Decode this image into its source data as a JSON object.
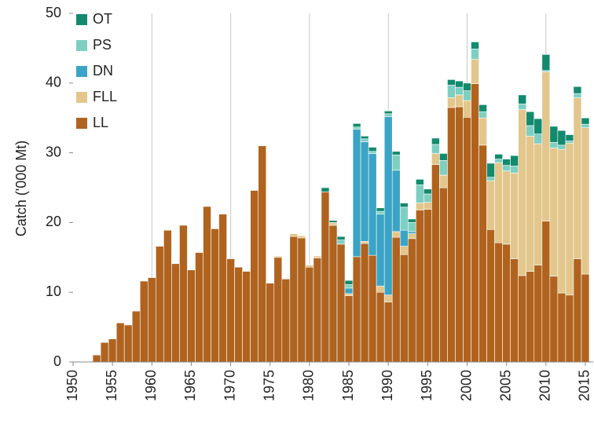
{
  "chart_data": {
    "type": "stacked-bar",
    "y_label": "Catch ('000 Mt)",
    "x": [
      1953,
      1954,
      1955,
      1956,
      1957,
      1958,
      1959,
      1960,
      1961,
      1962,
      1963,
      1964,
      1965,
      1966,
      1967,
      1968,
      1969,
      1970,
      1971,
      1972,
      1973,
      1974,
      1975,
      1976,
      1977,
      1978,
      1979,
      1980,
      1981,
      1982,
      1983,
      1984,
      1985,
      1986,
      1987,
      1988,
      1989,
      1990,
      1991,
      1992,
      1993,
      1994,
      1995,
      1996,
      1997,
      1998,
      1999,
      2000,
      2001,
      2002,
      2003,
      2004,
      2005,
      2006,
      2007,
      2008,
      2009,
      2010,
      2011,
      2012,
      2013,
      2014,
      2015
    ],
    "series": [
      {
        "name": "LL",
        "color": "#b0631f",
        "values": [
          1.0,
          2.8,
          3.3,
          5.6,
          5.3,
          7.3,
          11.6,
          12.1,
          16.6,
          18.9,
          14.1,
          19.6,
          13.2,
          15.7,
          22.3,
          19.1,
          21.2,
          14.8,
          13.6,
          13.0,
          24.6,
          31.0,
          11.3,
          15.0,
          11.9,
          18.0,
          17.8,
          13.6,
          14.9,
          24.4,
          19.6,
          16.9,
          9.5,
          15.1,
          17.0,
          15.3,
          10.0,
          8.6,
          17.9,
          15.4,
          17.7,
          21.8,
          21.9,
          28.3,
          25.0,
          36.5,
          36.6,
          35.1,
          39.9,
          31.1,
          19.0,
          17.1,
          16.9,
          14.8,
          12.4,
          13.0,
          13.9,
          20.2,
          12.3,
          9.9,
          9.6,
          14.8,
          12.6
        ]
      },
      {
        "name": "FLL",
        "color": "#e2c68c",
        "values": [
          0,
          0,
          0,
          0,
          0,
          0,
          0,
          0,
          0,
          0,
          0,
          0,
          0,
          0,
          0,
          0,
          0,
          0,
          0,
          0,
          0,
          0,
          0,
          0.2,
          0,
          0.4,
          0.3,
          0.3,
          0.3,
          0,
          0.4,
          0,
          0.3,
          0,
          0.3,
          0,
          0.9,
          1.0,
          0.8,
          1.2,
          0.7,
          1.0,
          1.0,
          1.6,
          1.8,
          1.4,
          1.7,
          2.4,
          3.5,
          3.9,
          7.0,
          11.5,
          10.5,
          12.3,
          23.8,
          19.4,
          17.4,
          21.4,
          18.4,
          20.6,
          21.8,
          23.1,
          21.0
        ]
      },
      {
        "name": "DN",
        "color": "#3aa4c6",
        "values": [
          0,
          0,
          0,
          0,
          0,
          0,
          0,
          0,
          0,
          0,
          0,
          0,
          0,
          0,
          0,
          0,
          0,
          0,
          0,
          0,
          0,
          0,
          0,
          0,
          0,
          0,
          0,
          0,
          0,
          0,
          0,
          0,
          0.8,
          18.3,
          14.3,
          14.6,
          10.3,
          25.6,
          8.8,
          2.3,
          0.3,
          0,
          0,
          0,
          0,
          0,
          0,
          0,
          0,
          0,
          0,
          0,
          0,
          0,
          0,
          0,
          0,
          0,
          0,
          0,
          0,
          0,
          0
        ]
      },
      {
        "name": "PS",
        "color": "#7ecfc2",
        "values": [
          0,
          0,
          0,
          0,
          0,
          0,
          0,
          0,
          0,
          0,
          0,
          0,
          0,
          0,
          0,
          0,
          0,
          0,
          0,
          0,
          0,
          0,
          0,
          0,
          0,
          0,
          0,
          0,
          0,
          0,
          0,
          0.6,
          0.5,
          0.3,
          0.4,
          0.3,
          0.4,
          0.4,
          2.2,
          3.3,
          1.3,
          2.6,
          1.2,
          1.3,
          2.1,
          1.8,
          1.1,
          1.4,
          1.5,
          0.9,
          0.5,
          0.5,
          0.8,
          1.0,
          0.8,
          1.5,
          1.4,
          0.2,
          0.8,
          0.6,
          0.3,
          0.6,
          0.5
        ]
      },
      {
        "name": "OT",
        "color": "#138a6e",
        "values": [
          0,
          0,
          0,
          0,
          0,
          0,
          0,
          0,
          0,
          0,
          0,
          0,
          0,
          0,
          0,
          0,
          0,
          0,
          0,
          0,
          0,
          0,
          0,
          0,
          0,
          0,
          0,
          0,
          0,
          0.6,
          0.3,
          0.5,
          0.6,
          0.5,
          0.4,
          0.6,
          0.5,
          0.4,
          0.5,
          0.6,
          0.5,
          0.8,
          0.7,
          0.9,
          1.0,
          0.8,
          0.9,
          1.1,
          1.0,
          1.0,
          2.0,
          0.7,
          0.9,
          1.5,
          1.3,
          2.0,
          2.2,
          2.3,
          2.3,
          2.1,
          0.9,
          1.0,
          0.9
        ]
      }
    ],
    "xlim": [
      1950,
      2016
    ],
    "xticks": [
      1950,
      1955,
      1960,
      1965,
      1970,
      1975,
      1980,
      1985,
      1990,
      1995,
      2000,
      2005,
      2010,
      2015
    ],
    "ylim": [
      0,
      50
    ],
    "yticks": [
      0,
      10,
      20,
      30,
      40,
      50
    ],
    "grid": true,
    "legend": "upper-left"
  }
}
